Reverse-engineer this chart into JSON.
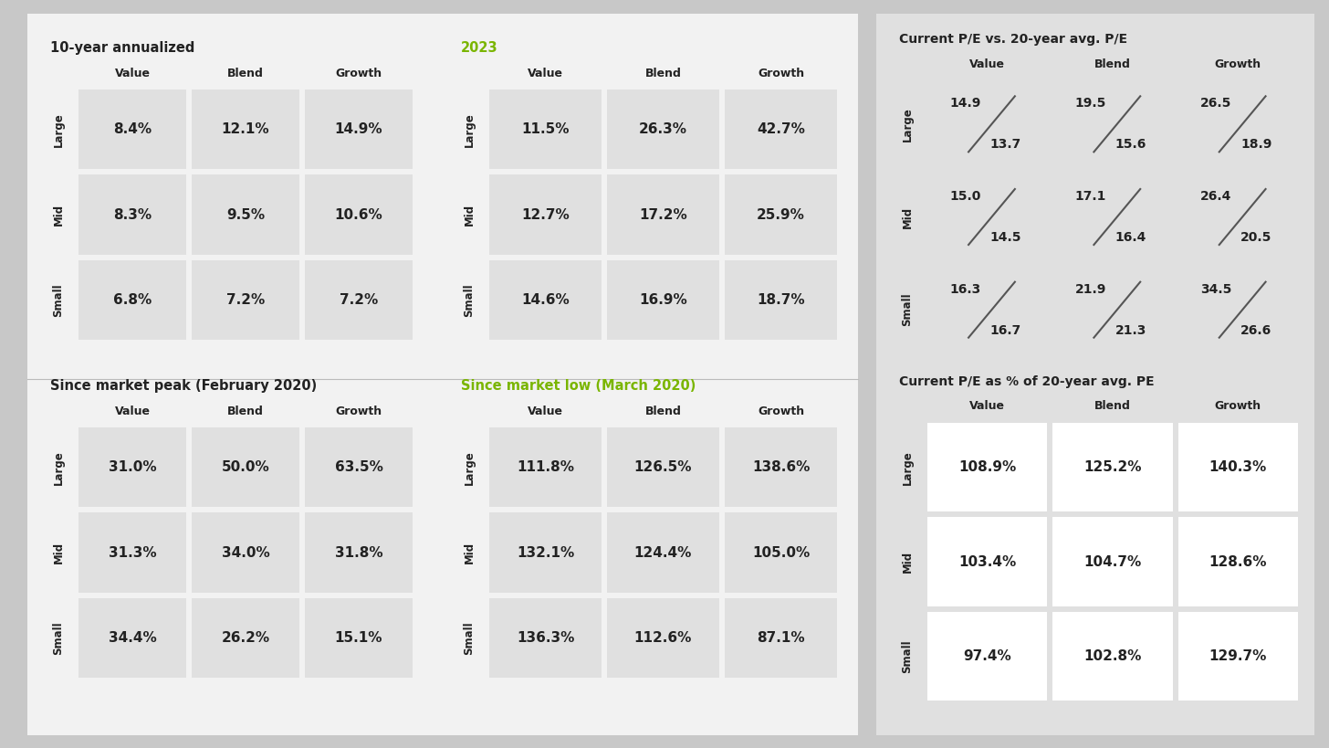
{
  "bg_outer": "#c8c8c8",
  "bg_left_panel": "#f2f2f2",
  "bg_right_panel": "#e0e0e0",
  "cell_bg_gray": "#e0e0e0",
  "cell_bg_white": "#ffffff",
  "text_black": "#222222",
  "text_green": "#7ab500",
  "sections": {
    "ten_year": {
      "title": "10-year annualized",
      "title_color": "#222222",
      "cols": [
        "Value",
        "Blend",
        "Growth"
      ],
      "rows": [
        "Large",
        "Mid",
        "Small"
      ],
      "data": [
        [
          "8.4%",
          "12.1%",
          "14.9%"
        ],
        [
          "8.3%",
          "9.5%",
          "10.6%"
        ],
        [
          "6.8%",
          "7.2%",
          "7.2%"
        ]
      ]
    },
    "year_2023": {
      "title": "2023",
      "title_color": "#7ab500",
      "cols": [
        "Value",
        "Blend",
        "Growth"
      ],
      "rows": [
        "Large",
        "Mid",
        "Small"
      ],
      "data": [
        [
          "11.5%",
          "26.3%",
          "42.7%"
        ],
        [
          "12.7%",
          "17.2%",
          "25.9%"
        ],
        [
          "14.6%",
          "16.9%",
          "18.7%"
        ]
      ]
    },
    "market_peak": {
      "title": "Since market peak (February 2020)",
      "title_color": "#222222",
      "cols": [
        "Value",
        "Blend",
        "Growth"
      ],
      "rows": [
        "Large",
        "Mid",
        "Small"
      ],
      "data": [
        [
          "31.0%",
          "50.0%",
          "63.5%"
        ],
        [
          "31.3%",
          "34.0%",
          "31.8%"
        ],
        [
          "34.4%",
          "26.2%",
          "15.1%"
        ]
      ]
    },
    "market_low": {
      "title": "Since market low (March 2020)",
      "title_color": "#7ab500",
      "cols": [
        "Value",
        "Blend",
        "Growth"
      ],
      "rows": [
        "Large",
        "Mid",
        "Small"
      ],
      "data": [
        [
          "111.8%",
          "126.5%",
          "138.6%"
        ],
        [
          "132.1%",
          "124.4%",
          "105.0%"
        ],
        [
          "136.3%",
          "112.6%",
          "87.1%"
        ]
      ]
    },
    "pe_vs": {
      "title": "Current P/E vs. 20-year avg. P/E",
      "title_color": "#222222",
      "cols": [
        "Value",
        "Blend",
        "Growth"
      ],
      "rows": [
        "Large",
        "Mid",
        "Small"
      ],
      "top": [
        [
          "14.9",
          "19.5",
          "26.5"
        ],
        [
          "15.0",
          "17.1",
          "26.4"
        ],
        [
          "16.3",
          "21.9",
          "34.5"
        ]
      ],
      "bottom": [
        [
          "13.7",
          "15.6",
          "18.9"
        ],
        [
          "14.5",
          "16.4",
          "20.5"
        ],
        [
          "16.7",
          "21.3",
          "26.6"
        ]
      ]
    },
    "pe_pct": {
      "title": "Current P/E as % of 20-year avg. PE",
      "title_color": "#222222",
      "cols": [
        "Value",
        "Blend",
        "Growth"
      ],
      "rows": [
        "Large",
        "Mid",
        "Small"
      ],
      "data": [
        [
          "108.9%",
          "125.2%",
          "140.3%"
        ],
        [
          "103.4%",
          "104.7%",
          "128.6%"
        ],
        [
          "97.4%",
          "102.8%",
          "129.7%"
        ]
      ]
    }
  }
}
